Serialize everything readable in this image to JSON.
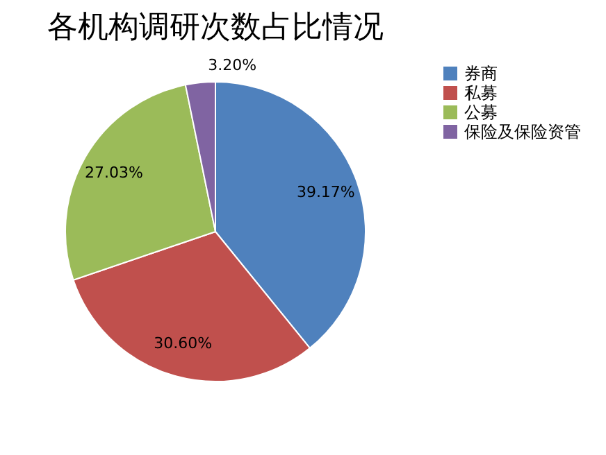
{
  "chart_data": {
    "type": "pie",
    "title": "各机构调研次数占比情况",
    "categories": [
      "券商",
      "私募",
      "公募",
      "保险及保险资管"
    ],
    "values": [
      39.17,
      30.6,
      27.03,
      3.2
    ],
    "colors": [
      "#4f81bd",
      "#c0504d",
      "#9bbb59",
      "#8064a2"
    ],
    "value_labels": [
      "39.17%",
      "30.60%",
      "27.03%",
      "3.20%"
    ],
    "legend": "right"
  }
}
